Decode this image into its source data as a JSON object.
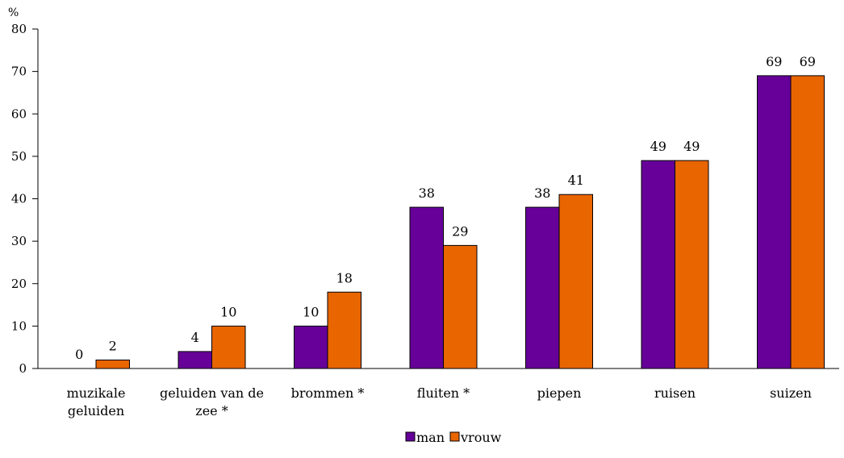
{
  "chart_data": {
    "type": "bar",
    "unit": "%",
    "ylim": [
      0,
      80
    ],
    "yticks": [
      0,
      10,
      20,
      30,
      40,
      50,
      60,
      70,
      80
    ],
    "categories": [
      [
        "muzikale",
        "geluiden"
      ],
      [
        "geluiden van de",
        "zee *"
      ],
      [
        "brommen *"
      ],
      [
        "fluiten *"
      ],
      [
        "piepen"
      ],
      [
        "ruisen"
      ],
      [
        "suizen"
      ]
    ],
    "series": [
      {
        "name": "man",
        "color": "#660099",
        "values": [
          0,
          4,
          10,
          38,
          38,
          49,
          69
        ]
      },
      {
        "name": "vrouw",
        "color": "#E86500",
        "values": [
          2,
          10,
          18,
          29,
          41,
          49,
          69
        ]
      }
    ],
    "legend_position": "bottom-center",
    "grid": false
  }
}
